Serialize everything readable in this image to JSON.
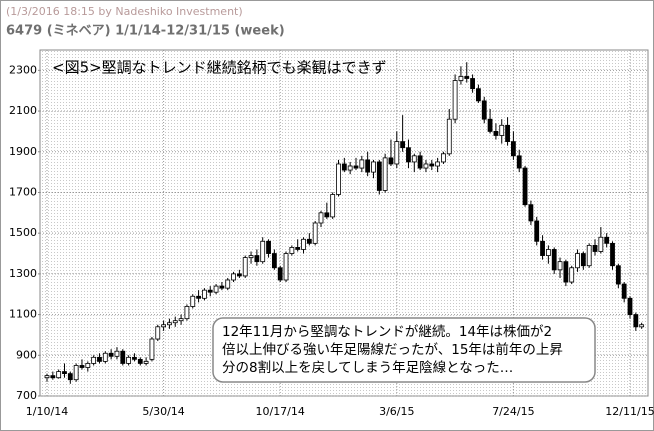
{
  "header": {
    "stamp": "(1/3/2016 18:15 by Nadeshiko Investment)",
    "subtitle": "6479 (ミネベア) 1/1/14-12/31/15 (week)"
  },
  "chart_data": {
    "type": "candlestick",
    "title": "<図5>堅調なトレンド継続銘柄でも楽観はできず",
    "annotation": [
      "12年11月から堅調なトレンドが継続。14年は株価が2",
      "倍以上伸びる強い年足陽線だったが、15年は前年の上昇",
      "分の8割以上を戻してしまう年足陰線となった…"
    ],
    "categories": [
      "1/10/14",
      null,
      null,
      null,
      null,
      null,
      null,
      null,
      null,
      null,
      null,
      null,
      null,
      null,
      null,
      null,
      null,
      null,
      null,
      null,
      "5/30/14",
      null,
      null,
      null,
      null,
      null,
      null,
      null,
      null,
      null,
      null,
      null,
      null,
      null,
      null,
      null,
      null,
      null,
      null,
      null,
      "10/17/14",
      null,
      null,
      null,
      null,
      null,
      null,
      null,
      null,
      null,
      null,
      null,
      null,
      null,
      null,
      null,
      null,
      null,
      null,
      null,
      "3/6/15",
      null,
      null,
      null,
      null,
      null,
      null,
      null,
      null,
      null,
      null,
      null,
      null,
      null,
      null,
      null,
      null,
      null,
      null,
      null,
      "7/24/15",
      null,
      null,
      null,
      null,
      null,
      null,
      null,
      null,
      null,
      null,
      null,
      null,
      null,
      null,
      null,
      null,
      null,
      null,
      null,
      "12/11/15",
      null,
      null
    ],
    "open": [
      790,
      800,
      790,
      820,
      810,
      780,
      850,
      840,
      860,
      890,
      870,
      910,
      895,
      920,
      860,
      890,
      880,
      860,
      880,
      980,
      1040,
      1050,
      1060,
      1070,
      1080,
      1140,
      1190,
      1180,
      1220,
      1210,
      1240,
      1230,
      1270,
      1300,
      1290,
      1380,
      1390,
      1360,
      1460,
      1400,
      1330,
      1270,
      1400,
      1430,
      1420,
      1470,
      1450,
      1550,
      1600,
      1580,
      1690,
      1840,
      1810,
      1830,
      1820,
      1860,
      1800,
      1850,
      1710,
      1870,
      1840,
      1950,
      1920,
      1850,
      1880,
      1820,
      1840,
      1830,
      1850,
      1890,
      2060,
      2250,
      2270,
      2260,
      2210,
      2150,
      2060,
      2000,
      1980,
      2030,
      1950,
      1880,
      1820,
      1640,
      1560,
      1460,
      1390,
      1420,
      1320,
      1360,
      1260,
      1330,
      1400,
      1340,
      1440,
      1410,
      1480,
      1450,
      1340,
      1250,
      1180,
      1100,
      1040
    ],
    "high": [
      810,
      820,
      830,
      860,
      820,
      860,
      880,
      870,
      900,
      910,
      920,
      930,
      940,
      930,
      900,
      910,
      890,
      890,
      990,
      1050,
      1070,
      1080,
      1090,
      1100,
      1150,
      1200,
      1220,
      1230,
      1240,
      1250,
      1260,
      1280,
      1310,
      1320,
      1390,
      1410,
      1420,
      1480,
      1470,
      1420,
      1340,
      1410,
      1440,
      1470,
      1480,
      1500,
      1560,
      1610,
      1650,
      1700,
      1860,
      1870,
      1850,
      1870,
      1880,
      1900,
      1860,
      1860,
      1890,
      1960,
      2000,
      2080,
      1960,
      1890,
      1900,
      1860,
      1860,
      1870,
      1900,
      2110,
      2280,
      2320,
      2340,
      2280,
      2230,
      2170,
      2110,
      2040,
      2060,
      2070,
      2000,
      1910,
      1830,
      1660,
      1580,
      1490,
      1440,
      1430,
      1380,
      1370,
      1340,
      1420,
      1410,
      1450,
      1470,
      1530,
      1500,
      1460,
      1350,
      1260,
      1190,
      1110,
      1060
    ],
    "low": [
      770,
      780,
      785,
      790,
      760,
      770,
      830,
      820,
      850,
      860,
      860,
      880,
      880,
      850,
      850,
      870,
      850,
      850,
      870,
      970,
      1020,
      1030,
      1040,
      1050,
      1070,
      1130,
      1160,
      1170,
      1190,
      1200,
      1220,
      1220,
      1260,
      1280,
      1280,
      1350,
      1340,
      1350,
      1380,
      1320,
      1260,
      1260,
      1390,
      1410,
      1400,
      1440,
      1440,
      1530,
      1570,
      1570,
      1680,
      1800,
      1790,
      1810,
      1800,
      1780,
      1770,
      1690,
      1700,
      1830,
      1820,
      1900,
      1820,
      1800,
      1810,
      1800,
      1810,
      1800,
      1840,
      1880,
      2040,
      2230,
      2240,
      2190,
      2140,
      2040,
      1990,
      1960,
      1940,
      1930,
      1860,
      1800,
      1630,
      1540,
      1440,
      1370,
      1350,
      1300,
      1280,
      1240,
      1250,
      1310,
      1320,
      1330,
      1390,
      1400,
      1430,
      1320,
      1230,
      1160,
      1080,
      1020,
      1030
    ],
    "close": [
      800,
      790,
      820,
      810,
      780,
      850,
      840,
      860,
      890,
      870,
      910,
      895,
      920,
      860,
      890,
      880,
      860,
      870,
      980,
      1040,
      1050,
      1060,
      1070,
      1080,
      1140,
      1190,
      1180,
      1220,
      1210,
      1240,
      1230,
      1270,
      1300,
      1290,
      1380,
      1390,
      1360,
      1460,
      1400,
      1330,
      1270,
      1400,
      1430,
      1420,
      1470,
      1450,
      1550,
      1600,
      1580,
      1690,
      1840,
      1810,
      1830,
      1820,
      1860,
      1800,
      1850,
      1710,
      1870,
      1840,
      1950,
      1920,
      1850,
      1880,
      1820,
      1840,
      1830,
      1850,
      1890,
      2060,
      2250,
      2270,
      2260,
      2210,
      2150,
      2060,
      2000,
      1980,
      2030,
      1950,
      1880,
      1820,
      1640,
      1560,
      1460,
      1390,
      1420,
      1320,
      1360,
      1260,
      1330,
      1400,
      1340,
      1440,
      1410,
      1480,
      1450,
      1340,
      1250,
      1180,
      1100,
      1040,
      1050
    ],
    "up_color": "#ffffff",
    "down_color": "#000000",
    "ylim": [
      700,
      2400
    ],
    "yticks": [
      700,
      900,
      1100,
      1300,
      1500,
      1700,
      1900,
      2100,
      2300
    ],
    "grid": true
  }
}
